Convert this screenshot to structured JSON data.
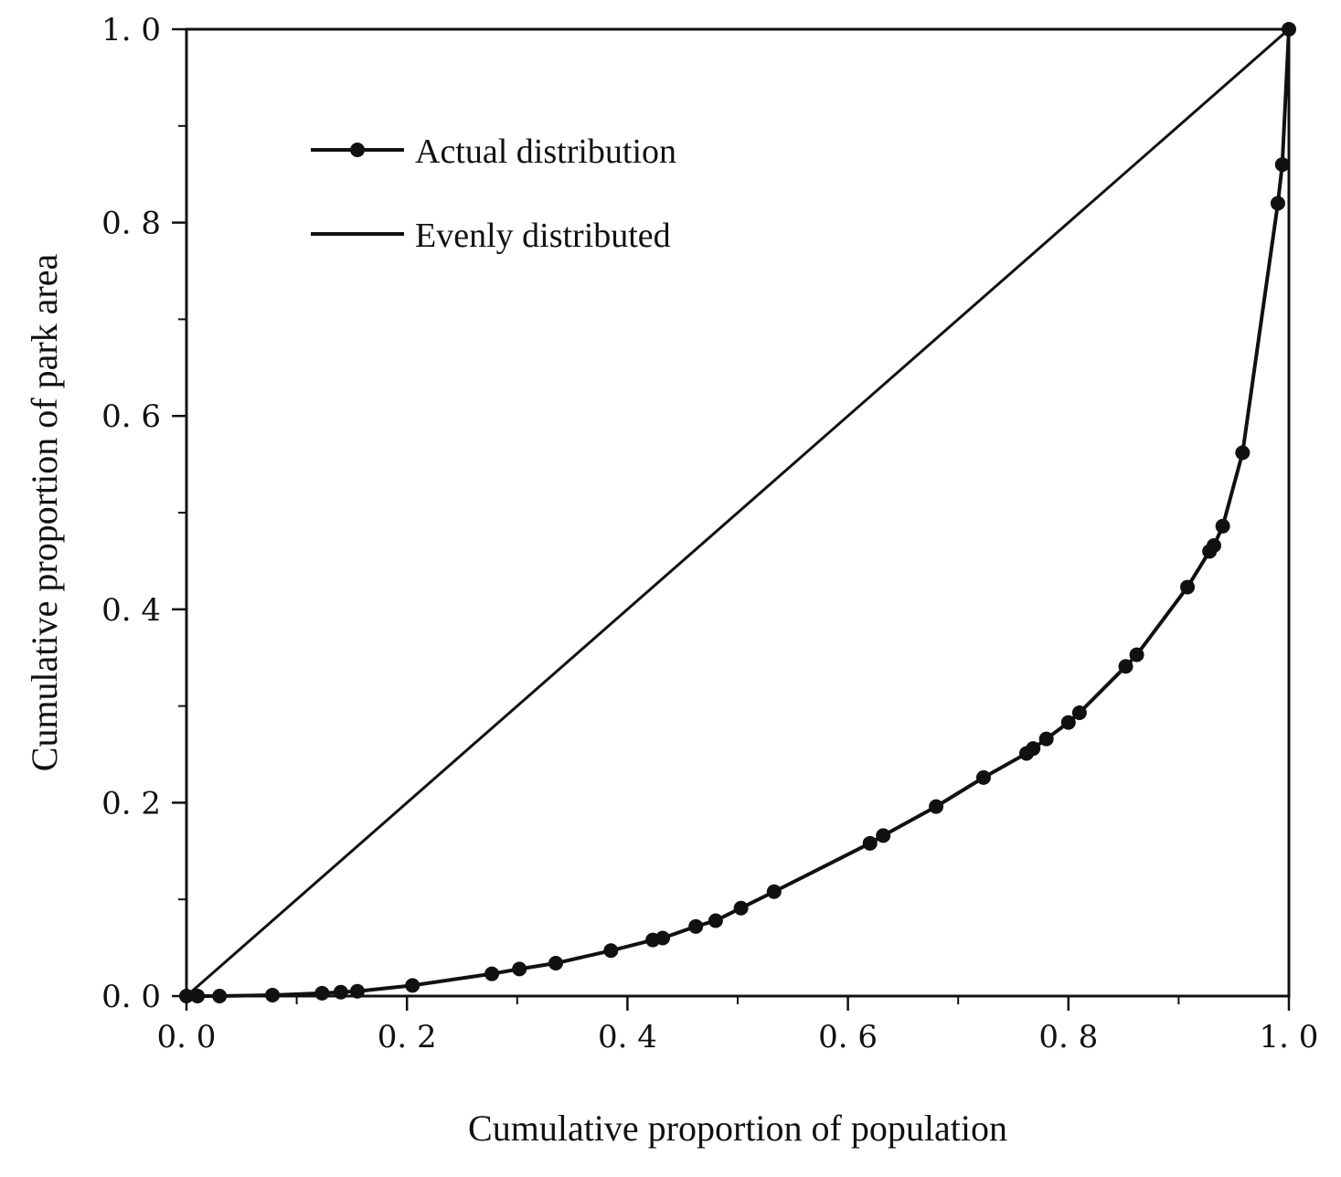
{
  "chart_data": {
    "type": "line",
    "xlabel": "Cumulative proportion of population",
    "ylabel": "Cumulative proportion of park area",
    "xlim": [
      0,
      1
    ],
    "ylim": [
      0,
      1
    ],
    "x_ticks": [
      "0. 0",
      "0. 2",
      "0. 4",
      "0. 6",
      "0. 8",
      "1. 0"
    ],
    "y_ticks": [
      "0. 0",
      "0. 2",
      "0. 4",
      "0. 6",
      "0. 8",
      "1. 0"
    ],
    "x_tick_values": [
      0,
      0.2,
      0.4,
      0.6,
      0.8,
      1.0
    ],
    "y_tick_values": [
      0,
      0.2,
      0.4,
      0.6,
      0.8,
      1.0
    ],
    "grid": false,
    "legend_position": "top-left",
    "series": [
      {
        "name": "Actual distribution",
        "marker": "circle",
        "color": "#111111",
        "points": [
          [
            0.0,
            0.0
          ],
          [
            0.01,
            0.0
          ],
          [
            0.03,
            0.0
          ],
          [
            0.078,
            0.001
          ],
          [
            0.123,
            0.003
          ],
          [
            0.14,
            0.004
          ],
          [
            0.155,
            0.005
          ],
          [
            0.205,
            0.011
          ],
          [
            0.277,
            0.023
          ],
          [
            0.302,
            0.028
          ],
          [
            0.335,
            0.034
          ],
          [
            0.385,
            0.047
          ],
          [
            0.423,
            0.058
          ],
          [
            0.432,
            0.06
          ],
          [
            0.462,
            0.072
          ],
          [
            0.48,
            0.078
          ],
          [
            0.503,
            0.091
          ],
          [
            0.533,
            0.108
          ],
          [
            0.62,
            0.158
          ],
          [
            0.632,
            0.166
          ],
          [
            0.68,
            0.196
          ],
          [
            0.723,
            0.226
          ],
          [
            0.762,
            0.251
          ],
          [
            0.768,
            0.256
          ],
          [
            0.78,
            0.266
          ],
          [
            0.8,
            0.283
          ],
          [
            0.81,
            0.293
          ],
          [
            0.852,
            0.341
          ],
          [
            0.862,
            0.353
          ],
          [
            0.908,
            0.423
          ],
          [
            0.928,
            0.46
          ],
          [
            0.932,
            0.466
          ],
          [
            0.94,
            0.486
          ],
          [
            0.958,
            0.562
          ],
          [
            0.99,
            0.82
          ],
          [
            0.994,
            0.86
          ],
          [
            1.0,
            1.0
          ]
        ]
      },
      {
        "name": "Evenly distributed",
        "marker": "none",
        "color": "#111111",
        "points": [
          [
            0,
            0
          ],
          [
            1,
            1
          ]
        ]
      }
    ]
  }
}
